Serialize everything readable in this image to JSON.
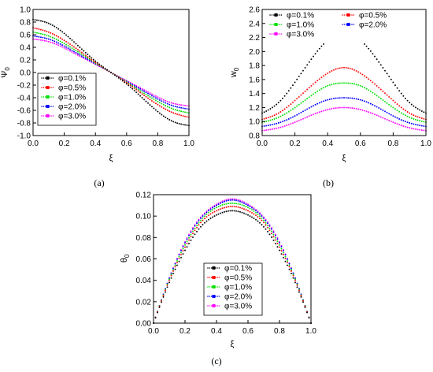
{
  "series_colors": [
    "#000000",
    "#ff0000",
    "#00e000",
    "#0000ff",
    "#ff00ff"
  ],
  "chart_data": [
    {
      "id": "a",
      "type": "scatter",
      "caption": "(a)",
      "xlabel": "ξ",
      "ylabel": {
        "main": "Ψ",
        "sub": "0"
      },
      "xlim": [
        0.0,
        1.0
      ],
      "ylim": [
        -1.0,
        1.0
      ],
      "xticks": [
        "0.0",
        "0.2",
        "0.4",
        "0.6",
        "0.8",
        "1.0"
      ],
      "yticks": [
        "-1.0",
        "-0.8",
        "-0.6",
        "-0.4",
        "-0.2",
        "0.0",
        "0.2",
        "0.4",
        "0.6",
        "0.8",
        "1.0"
      ],
      "legend_position": "left-middle",
      "legend_columns": 1,
      "x": [
        0.0,
        0.1,
        0.2,
        0.3,
        0.4,
        0.5,
        0.6,
        0.7,
        0.8,
        0.9,
        1.0
      ],
      "series": [
        {
          "name": "φ=0.1%",
          "values": [
            0.84,
            0.78,
            0.62,
            0.4,
            0.18,
            0.0,
            -0.18,
            -0.4,
            -0.62,
            -0.78,
            -0.84
          ]
        },
        {
          "name": "φ=0.5%",
          "values": [
            0.71,
            0.64,
            0.51,
            0.34,
            0.16,
            0.0,
            -0.16,
            -0.34,
            -0.51,
            -0.64,
            -0.71
          ]
        },
        {
          "name": "φ=1.0%",
          "values": [
            0.64,
            0.58,
            0.46,
            0.31,
            0.15,
            0.0,
            -0.15,
            -0.31,
            -0.46,
            -0.58,
            -0.64
          ]
        },
        {
          "name": "φ=2.0%",
          "values": [
            0.58,
            0.53,
            0.42,
            0.28,
            0.14,
            0.0,
            -0.14,
            -0.28,
            -0.42,
            -0.53,
            -0.58
          ]
        },
        {
          "name": "φ=3.0%",
          "values": [
            0.53,
            0.49,
            0.39,
            0.26,
            0.13,
            0.0,
            -0.13,
            -0.26,
            -0.39,
            -0.49,
            -0.53
          ]
        }
      ]
    },
    {
      "id": "b",
      "type": "scatter",
      "caption": "(b)",
      "xlabel": "ξ",
      "ylabel": {
        "main": "w",
        "sub": "0"
      },
      "xlim": [
        0.0,
        1.0
      ],
      "ylim": [
        0.8,
        2.6
      ],
      "xticks": [
        "0.0",
        "0.2",
        "0.4",
        "0.6",
        "0.8",
        "1.0"
      ],
      "yticks": [
        "0.8",
        "1.0",
        "1.2",
        "1.4",
        "1.6",
        "1.8",
        "2.0",
        "2.2",
        "2.4",
        "2.6"
      ],
      "legend_position": "top",
      "legend_columns": 2,
      "x": [
        0.0,
        0.1,
        0.2,
        0.3,
        0.4,
        0.5,
        0.6,
        0.7,
        0.8,
        0.9,
        1.0
      ],
      "series": [
        {
          "name": "φ=0.1%",
          "values": [
            1.12,
            1.27,
            1.56,
            1.89,
            2.16,
            2.25,
            2.16,
            1.89,
            1.56,
            1.27,
            1.12
          ]
        },
        {
          "name": "φ=0.5%",
          "values": [
            1.03,
            1.12,
            1.3,
            1.51,
            1.69,
            1.77,
            1.69,
            1.51,
            1.3,
            1.12,
            1.03
          ]
        },
        {
          "name": "φ=1.0%",
          "values": [
            0.99,
            1.06,
            1.2,
            1.37,
            1.51,
            1.55,
            1.51,
            1.37,
            1.2,
            1.06,
            0.99
          ]
        },
        {
          "name": "φ=2.0%",
          "values": [
            0.93,
            0.98,
            1.08,
            1.21,
            1.31,
            1.34,
            1.31,
            1.21,
            1.08,
            0.98,
            0.93
          ]
        },
        {
          "name": "φ=3.0%",
          "values": [
            0.87,
            0.91,
            0.99,
            1.09,
            1.17,
            1.2,
            1.17,
            1.09,
            0.99,
            0.91,
            0.87
          ]
        }
      ]
    },
    {
      "id": "c",
      "type": "scatter",
      "caption": "(c)",
      "xlabel": "ξ",
      "ylabel": {
        "main": "θ",
        "sub": "0"
      },
      "xlim": [
        0.0,
        1.0
      ],
      "ylim": [
        0.0,
        0.12
      ],
      "xticks": [
        "0.0",
        "0.2",
        "0.4",
        "0.6",
        "0.8",
        "1.0"
      ],
      "yticks": [
        "0.00",
        "0.02",
        "0.04",
        "0.06",
        "0.08",
        "0.10",
        "0.12"
      ],
      "legend_position": "bottom-center",
      "legend_columns": 1,
      "x": [
        0.0,
        0.1,
        0.2,
        0.3,
        0.4,
        0.5,
        0.6,
        0.7,
        0.8,
        0.9,
        1.0
      ],
      "series": [
        {
          "name": "φ=0.1%",
          "values": [
            0.0,
            0.038,
            0.068,
            0.09,
            0.101,
            0.105,
            0.101,
            0.09,
            0.068,
            0.038,
            0.0
          ]
        },
        {
          "name": "φ=0.5%",
          "values": [
            0.0,
            0.04,
            0.071,
            0.094,
            0.105,
            0.109,
            0.105,
            0.094,
            0.071,
            0.04,
            0.0
          ]
        },
        {
          "name": "φ=1.0%",
          "values": [
            0.0,
            0.041,
            0.073,
            0.096,
            0.108,
            0.112,
            0.108,
            0.096,
            0.073,
            0.041,
            0.0
          ]
        },
        {
          "name": "φ=2.0%",
          "values": [
            0.0,
            0.042,
            0.075,
            0.098,
            0.11,
            0.115,
            0.11,
            0.098,
            0.075,
            0.042,
            0.0
          ]
        },
        {
          "name": "φ=3.0%",
          "values": [
            0.0,
            0.042,
            0.076,
            0.099,
            0.111,
            0.116,
            0.111,
            0.099,
            0.076,
            0.042,
            0.0
          ]
        }
      ]
    }
  ]
}
